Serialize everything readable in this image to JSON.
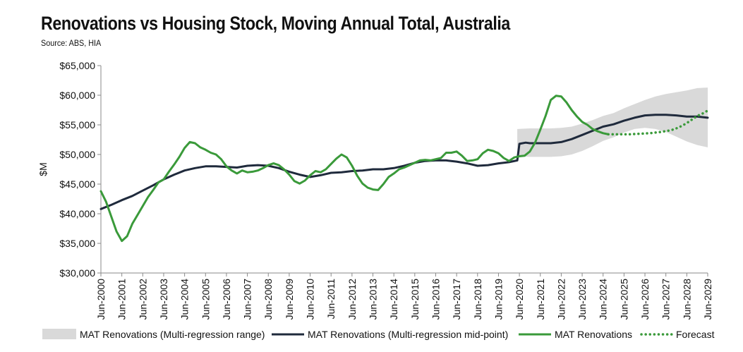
{
  "chart_data": {
    "type": "line",
    "title": "Renovations vs Housing Stock, Moving Annual Total, Australia",
    "subtitle": "Source: ABS, HIA",
    "ylabel": "$M",
    "xlabel": "",
    "ylim": [
      30000,
      65000
    ],
    "yticks": [
      "$30,000",
      "$35,000",
      "$40,000",
      "$45,000",
      "$50,000",
      "$55,000",
      "$60,000",
      "$65,000"
    ],
    "ytick_values": [
      30000,
      35000,
      40000,
      45000,
      50000,
      55000,
      60000,
      65000
    ],
    "xlim": [
      2000.0,
      2029.0
    ],
    "xticks": [
      "Jun-2000",
      "Jun-2001",
      "Jun-2002",
      "Jun-2003",
      "Jun-2004",
      "Jun-2005",
      "Jun-2006",
      "Jun-2007",
      "Jun-2008",
      "Jun-2009",
      "Jun-2010",
      "Jun-2011",
      "Jun-2012",
      "Jun-2013",
      "Jun-2014",
      "Jun-2015",
      "Jun-2016",
      "Jun-2017",
      "Jun-2018",
      "Jun-2019",
      "Jun-2020",
      "Jun-2021",
      "Jun-2022",
      "Jun-2023",
      "Jun-2024",
      "Jun-2025",
      "Jun-2026",
      "Jun-2027",
      "Jun-2028",
      "Jun-2029"
    ],
    "grid": false,
    "legend_position": "bottom",
    "colors": {
      "range": "#d9d9d9",
      "midpoint": "#1f2a3c",
      "renovations": "#3a9a3a",
      "forecast": "#3a9a3a"
    },
    "series": [
      {
        "name": "MAT Renovations (Multi-regression range)",
        "style": "band",
        "x": [
          2019.9,
          2020.5,
          2021.0,
          2021.5,
          2022.0,
          2022.5,
          2023.0,
          2023.5,
          2024.0,
          2024.5,
          2025.0,
          2025.5,
          2026.0,
          2026.5,
          2027.0,
          2027.5,
          2028.0,
          2028.5,
          2029.0
        ],
        "upper": [
          54300,
          54400,
          54400,
          54400,
          54500,
          54700,
          55200,
          55800,
          56500,
          57000,
          57800,
          58500,
          59200,
          59800,
          60200,
          60500,
          60800,
          61200,
          61300
        ],
        "lower": [
          49700,
          49600,
          49600,
          49600,
          49700,
          50000,
          50600,
          51400,
          52300,
          52900,
          53700,
          54300,
          54500,
          54300,
          53800,
          53000,
          52200,
          51600,
          51200
        ]
      },
      {
        "name": "MAT Renovations (Multi-regression mid-point)",
        "style": "solid",
        "x": [
          2000.0,
          2000.5,
          2001.0,
          2001.5,
          2002.0,
          2002.5,
          2003.0,
          2003.5,
          2004.0,
          2004.5,
          2005.0,
          2005.5,
          2006.0,
          2006.5,
          2007.0,
          2007.5,
          2008.0,
          2008.5,
          2009.0,
          2009.5,
          2010.0,
          2010.5,
          2011.0,
          2011.5,
          2012.0,
          2012.5,
          2013.0,
          2013.5,
          2014.0,
          2014.5,
          2015.0,
          2015.5,
          2016.0,
          2016.5,
          2017.0,
          2017.5,
          2018.0,
          2018.5,
          2019.0,
          2019.5,
          2019.9,
          2020.0,
          2020.3,
          2020.5,
          2021.0,
          2021.5,
          2022.0,
          2022.5,
          2023.0,
          2023.5,
          2024.0,
          2024.5,
          2025.0,
          2025.5,
          2026.0,
          2026.5,
          2027.0,
          2027.5,
          2028.0,
          2028.5,
          2029.0
        ],
        "values": [
          40800,
          41500,
          42300,
          43000,
          43900,
          44800,
          45800,
          46600,
          47300,
          47700,
          48000,
          48000,
          47900,
          47800,
          48100,
          48200,
          48100,
          47700,
          47100,
          46600,
          46200,
          46500,
          46900,
          47000,
          47200,
          47300,
          47500,
          47500,
          47700,
          48100,
          48600,
          48900,
          49000,
          49000,
          48800,
          48500,
          48100,
          48200,
          48500,
          48700,
          49000,
          51800,
          52000,
          51900,
          51900,
          51900,
          52100,
          52600,
          53300,
          54000,
          54700,
          55100,
          55700,
          56200,
          56600,
          56700,
          56700,
          56600,
          56400,
          56400,
          56200
        ]
      },
      {
        "name": "MAT Renovations",
        "style": "solid",
        "x": [
          2000.0,
          2000.25,
          2000.5,
          2000.75,
          2001.0,
          2001.25,
          2001.5,
          2001.75,
          2002.0,
          2002.25,
          2002.5,
          2002.75,
          2003.0,
          2003.25,
          2003.5,
          2003.75,
          2004.0,
          2004.25,
          2004.5,
          2004.75,
          2005.0,
          2005.25,
          2005.5,
          2005.75,
          2006.0,
          2006.25,
          2006.5,
          2006.75,
          2007.0,
          2007.25,
          2007.5,
          2007.75,
          2008.0,
          2008.25,
          2008.5,
          2008.75,
          2009.0,
          2009.25,
          2009.5,
          2009.75,
          2010.0,
          2010.25,
          2010.5,
          2010.75,
          2011.0,
          2011.25,
          2011.5,
          2011.75,
          2012.0,
          2012.25,
          2012.5,
          2012.75,
          2013.0,
          2013.25,
          2013.5,
          2013.75,
          2014.0,
          2014.25,
          2014.5,
          2014.75,
          2015.0,
          2015.25,
          2015.5,
          2015.75,
          2016.0,
          2016.25,
          2016.5,
          2016.75,
          2017.0,
          2017.25,
          2017.5,
          2017.75,
          2018.0,
          2018.25,
          2018.5,
          2018.75,
          2019.0,
          2019.25,
          2019.5,
          2019.75,
          2020.0,
          2020.25,
          2020.5,
          2020.75,
          2021.0,
          2021.25,
          2021.5,
          2021.75,
          2022.0,
          2022.25,
          2022.5,
          2022.75,
          2023.0,
          2023.25,
          2023.5,
          2023.75,
          2024.0,
          2024.25
        ],
        "values": [
          43800,
          42000,
          39500,
          37000,
          35400,
          36200,
          38300,
          39800,
          41300,
          42800,
          44000,
          45300,
          45800,
          47100,
          48300,
          49600,
          51100,
          52100,
          51900,
          51200,
          50800,
          50300,
          50000,
          49200,
          48000,
          47300,
          46800,
          47300,
          47000,
          47100,
          47300,
          47700,
          48200,
          48500,
          48200,
          47500,
          46600,
          45500,
          45100,
          45600,
          46500,
          47200,
          47000,
          47500,
          48400,
          49300,
          50000,
          49500,
          48100,
          46400,
          45100,
          44400,
          44100,
          44000,
          45000,
          46200,
          46800,
          47500,
          47800,
          48200,
          48600,
          49000,
          49100,
          49000,
          49200,
          49400,
          50300,
          50300,
          50500,
          49800,
          48900,
          49000,
          49200,
          50200,
          50800,
          50600,
          50200,
          49400,
          48900,
          49500,
          49700,
          49800,
          50500,
          52000,
          54200,
          56500,
          59200,
          59900,
          59800,
          58800,
          57500,
          56400,
          55500,
          55000,
          54300,
          53900,
          53600,
          53400
        ]
      },
      {
        "name": "Forecast",
        "style": "dotted",
        "x": [
          2024.25,
          2024.75,
          2025.25,
          2025.75,
          2026.25,
          2026.75,
          2027.25,
          2027.5,
          2027.75,
          2028.0,
          2028.25,
          2028.5,
          2028.75,
          2029.0
        ],
        "values": [
          53400,
          53400,
          53400,
          53500,
          53600,
          53800,
          54100,
          54400,
          54800,
          55300,
          55900,
          56500,
          56900,
          57400
        ]
      }
    ]
  }
}
